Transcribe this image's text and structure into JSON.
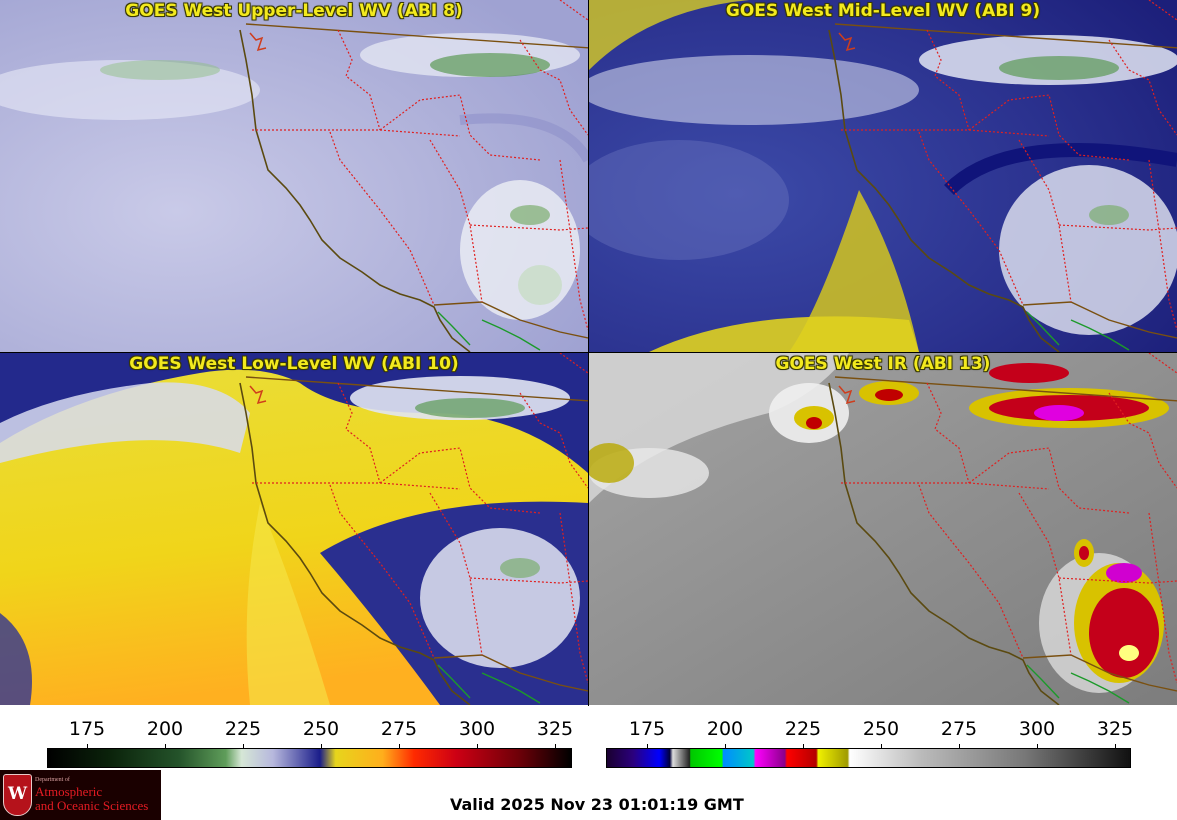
{
  "panels": {
    "upper": {
      "title": "GOES West Upper-Level WV (ABI 8)"
    },
    "mid": {
      "title": "GOES West Mid-Level WV (ABI 9)"
    },
    "low": {
      "title": "GOES West Low-Level WV (ABI 10)"
    },
    "ir": {
      "title": "GOES West IR (ABI 13)"
    }
  },
  "colorbar_left": {
    "ticks": [
      "175",
      "200",
      "225",
      "250",
      "275",
      "300",
      "325"
    ]
  },
  "colorbar_right": {
    "ticks": [
      "175",
      "200",
      "225",
      "250",
      "275",
      "300",
      "325"
    ]
  },
  "logo": {
    "seal_letter": "W",
    "dept": "Department of",
    "line1": "Atmospheric",
    "line2": "and Oceanic Sciences"
  },
  "valid_time": "Valid 2025 Nov 23 01:01:19 GMT",
  "colors": {
    "coastline": "#5b4a10",
    "state_borders": "#e02020",
    "country_border": "#5b4a10",
    "title_text": "#f3ea1e"
  }
}
